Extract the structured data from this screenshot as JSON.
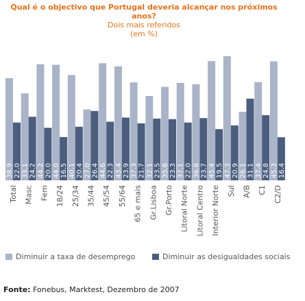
{
  "header": {
    "title": "Qual é o objectivo que Portugal deveria alcançar nos próximos anos?",
    "subtitle": "Dois mais referidos",
    "unit": "(em %)"
  },
  "source": {
    "label": "Fonte:",
    "text": "Fonebus, Marktest, Dezembro de 2007"
  },
  "colors": {
    "series1": "#aab4c8",
    "series2": "#4b5e7e",
    "label_on_bar": "#ffffff",
    "tick": "#555555"
  },
  "chart_data": {
    "type": "bar",
    "title": "Qual é o objectivo que Portugal deveria alcançar nos próximos anos?",
    "subtitle": "Dois mais referidos",
    "unit": "(em %)",
    "categories": [
      "Total",
      "Masc",
      "Fem",
      "18/24",
      "25/34",
      "35/44",
      "45/54",
      "55/64",
      "65 e mais",
      "Gr.Lisboa",
      "Gr.Porto",
      "Litoral Norte",
      "Litoral Centro",
      "Interior Norte",
      "Sul",
      "A/B",
      "C1",
      "C2/D"
    ],
    "series": [
      {
        "name": "Diminuir a taxa de desemprego",
        "values": [
          38.9,
          33.1,
          44.2,
          44.0,
          40.1,
          27.0,
          44.6,
          43.4,
          37.3,
          32.1,
          35.6,
          37.1,
          36.6,
          45.4,
          47.3,
          26.1,
          37.4,
          45.3
        ]
      },
      {
        "name": "Diminuir as desigualdades sociais",
        "values": [
          22.0,
          24.2,
          20.0,
          16.5,
          20.4,
          26.4,
          22.3,
          23.9,
          21.7,
          23.5,
          23.3,
          22.0,
          23.7,
          19.5,
          20.9,
          31.1,
          24.8,
          16.4
        ]
      }
    ],
    "ylim": [
      0,
      50
    ],
    "grid": false,
    "legend": "bottom"
  }
}
